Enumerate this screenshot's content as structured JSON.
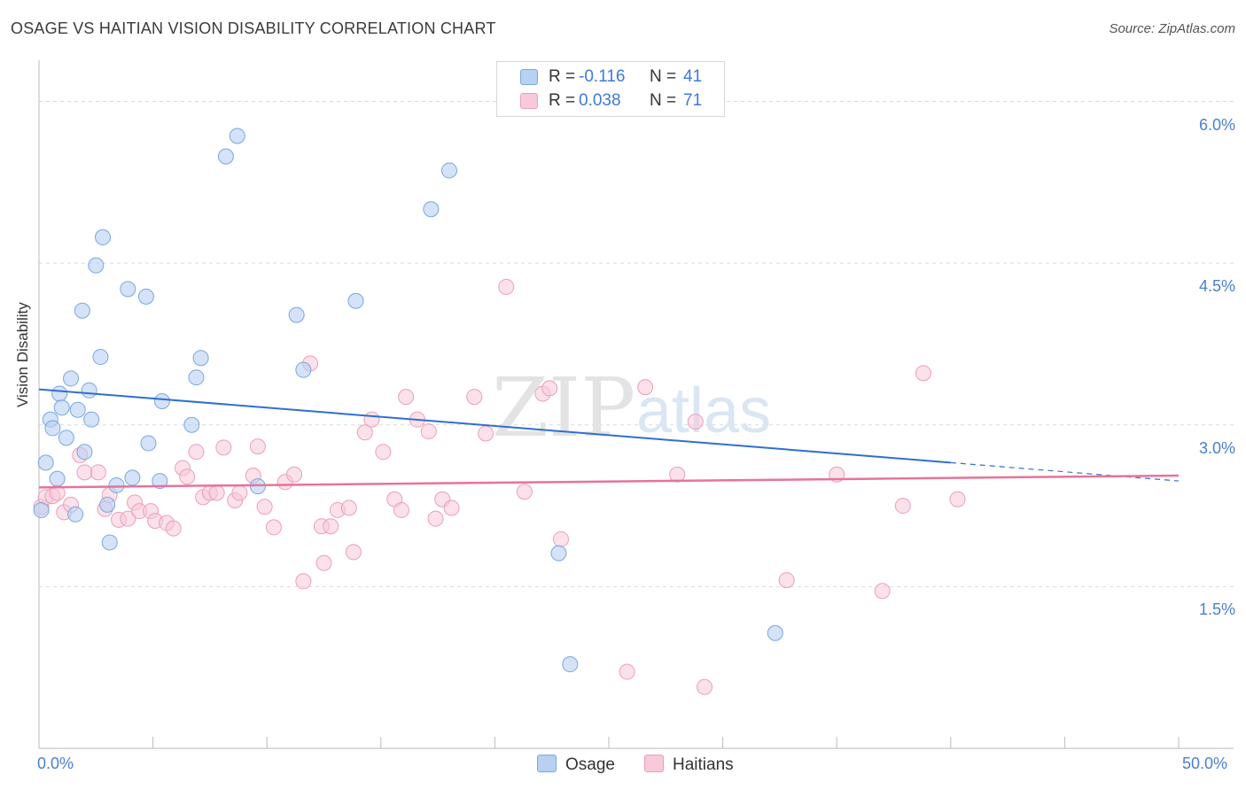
{
  "title": "OSAGE VS HAITIAN VISION DISABILITY CORRELATION CHART",
  "source": "Source: ZipAtlas.com",
  "watermark": {
    "zip": "ZIP",
    "atlas": "atlas"
  },
  "legend": {
    "rows": [
      {
        "r_label": "R =",
        "r_value": "-0.116",
        "n_label": "N =",
        "n_value": "41"
      },
      {
        "r_label": "R =",
        "r_value": "0.038",
        "n_label": "N =",
        "n_value": "71"
      }
    ]
  },
  "colors": {
    "osage_fill": "#b7d1f3",
    "osage_stroke": "#7aa6e0",
    "osage_line": "#2f6fd0",
    "haitians_fill": "#f8c9d8",
    "haitians_stroke": "#ec9fb8",
    "haitians_line": "#e8739a",
    "tick_text": "#4a7fd0",
    "grid": "#d9d9d9"
  },
  "chart_data": {
    "type": "scatter",
    "title": "OSAGE VS HAITIAN VISION DISABILITY CORRELATION CHART",
    "xlabel": "",
    "ylabel": "Vision Disability",
    "xlim": [
      0,
      50
    ],
    "ylim": [
      0,
      6.3
    ],
    "x_tick_labels": [
      "0.0%",
      "50.0%"
    ],
    "y_ticks": [
      1.5,
      3.0,
      4.5,
      6.0
    ],
    "y_tick_labels": [
      "1.5%",
      "3.0%",
      "4.5%",
      "6.0%"
    ],
    "grid": true,
    "legend_position": "top-center",
    "series": [
      {
        "name": "Osage",
        "r": -0.116,
        "n": 41,
        "trend": {
          "x0": 0,
          "y0": 3.33,
          "x1": 40,
          "y1": 2.65,
          "dashed_to_x": 50,
          "dashed_to_y": 2.48
        },
        "points": [
          [
            0.1,
            2.21
          ],
          [
            0.3,
            2.65
          ],
          [
            0.5,
            3.05
          ],
          [
            0.6,
            2.97
          ],
          [
            0.8,
            2.5
          ],
          [
            0.9,
            3.29
          ],
          [
            1.0,
            3.16
          ],
          [
            1.2,
            2.88
          ],
          [
            1.4,
            3.43
          ],
          [
            1.6,
            2.17
          ],
          [
            1.7,
            3.14
          ],
          [
            1.9,
            4.06
          ],
          [
            2.0,
            2.75
          ],
          [
            2.2,
            3.32
          ],
          [
            2.3,
            3.05
          ],
          [
            2.5,
            4.48
          ],
          [
            2.7,
            3.63
          ],
          [
            2.8,
            4.74
          ],
          [
            3.0,
            2.26
          ],
          [
            3.1,
            1.91
          ],
          [
            3.4,
            2.44
          ],
          [
            3.9,
            4.26
          ],
          [
            4.1,
            2.51
          ],
          [
            4.7,
            4.19
          ],
          [
            4.8,
            2.83
          ],
          [
            5.3,
            2.48
          ],
          [
            5.4,
            3.22
          ],
          [
            6.7,
            3.0
          ],
          [
            6.9,
            3.44
          ],
          [
            7.1,
            3.62
          ],
          [
            8.2,
            5.49
          ],
          [
            8.7,
            5.68
          ],
          [
            9.6,
            2.43
          ],
          [
            11.3,
            4.02
          ],
          [
            11.6,
            3.51
          ],
          [
            13.9,
            4.15
          ],
          [
            17.2,
            5.0
          ],
          [
            18.0,
            5.36
          ],
          [
            22.8,
            1.81
          ],
          [
            23.3,
            0.78
          ],
          [
            32.3,
            1.07
          ]
        ]
      },
      {
        "name": "Haitians",
        "r": 0.038,
        "n": 71,
        "trend": {
          "x0": 0,
          "y0": 2.42,
          "x1": 50,
          "y1": 2.53
        },
        "points": [
          [
            0.1,
            2.24
          ],
          [
            0.3,
            2.33
          ],
          [
            0.6,
            2.34
          ],
          [
            0.8,
            2.37
          ],
          [
            1.1,
            2.19
          ],
          [
            1.4,
            2.26
          ],
          [
            1.8,
            2.72
          ],
          [
            2.0,
            2.56
          ],
          [
            2.6,
            2.56
          ],
          [
            2.9,
            2.22
          ],
          [
            3.1,
            2.35
          ],
          [
            3.5,
            2.12
          ],
          [
            3.9,
            2.13
          ],
          [
            4.2,
            2.28
          ],
          [
            4.4,
            2.2
          ],
          [
            4.9,
            2.2
          ],
          [
            5.1,
            2.11
          ],
          [
            5.6,
            2.09
          ],
          [
            5.9,
            2.04
          ],
          [
            6.3,
            2.6
          ],
          [
            6.5,
            2.52
          ],
          [
            6.9,
            2.75
          ],
          [
            7.2,
            2.33
          ],
          [
            7.5,
            2.37
          ],
          [
            7.8,
            2.37
          ],
          [
            8.1,
            2.79
          ],
          [
            8.6,
            2.3
          ],
          [
            8.8,
            2.37
          ],
          [
            9.4,
            2.53
          ],
          [
            9.6,
            2.8
          ],
          [
            9.9,
            2.24
          ],
          [
            10.3,
            2.05
          ],
          [
            10.8,
            2.47
          ],
          [
            11.2,
            2.54
          ],
          [
            11.6,
            1.55
          ],
          [
            11.9,
            3.57
          ],
          [
            12.4,
            2.06
          ],
          [
            12.5,
            1.72
          ],
          [
            12.8,
            2.06
          ],
          [
            13.1,
            2.21
          ],
          [
            13.6,
            2.23
          ],
          [
            13.8,
            1.82
          ],
          [
            14.3,
            2.93
          ],
          [
            14.6,
            3.05
          ],
          [
            15.1,
            2.75
          ],
          [
            15.6,
            2.31
          ],
          [
            15.9,
            2.21
          ],
          [
            16.1,
            3.26
          ],
          [
            16.6,
            3.05
          ],
          [
            17.1,
            2.94
          ],
          [
            17.4,
            2.13
          ],
          [
            17.7,
            2.31
          ],
          [
            18.1,
            2.23
          ],
          [
            19.1,
            3.26
          ],
          [
            19.6,
            2.92
          ],
          [
            20.5,
            4.28
          ],
          [
            21.3,
            2.38
          ],
          [
            22.1,
            3.29
          ],
          [
            22.4,
            3.34
          ],
          [
            22.9,
            1.94
          ],
          [
            25.8,
            0.71
          ],
          [
            26.6,
            3.35
          ],
          [
            28.0,
            2.54
          ],
          [
            28.8,
            3.03
          ],
          [
            29.2,
            0.57
          ],
          [
            32.8,
            1.56
          ],
          [
            35.0,
            2.54
          ],
          [
            37.0,
            1.46
          ],
          [
            37.9,
            2.25
          ],
          [
            38.8,
            3.48
          ],
          [
            40.3,
            2.31
          ]
        ]
      }
    ]
  },
  "axis": {
    "y_label": "Vision Disability",
    "x_min_label": "0.0%",
    "x_max_label": "50.0%"
  },
  "bottom_legend": [
    {
      "label": "Osage"
    },
    {
      "label": "Haitians"
    }
  ]
}
